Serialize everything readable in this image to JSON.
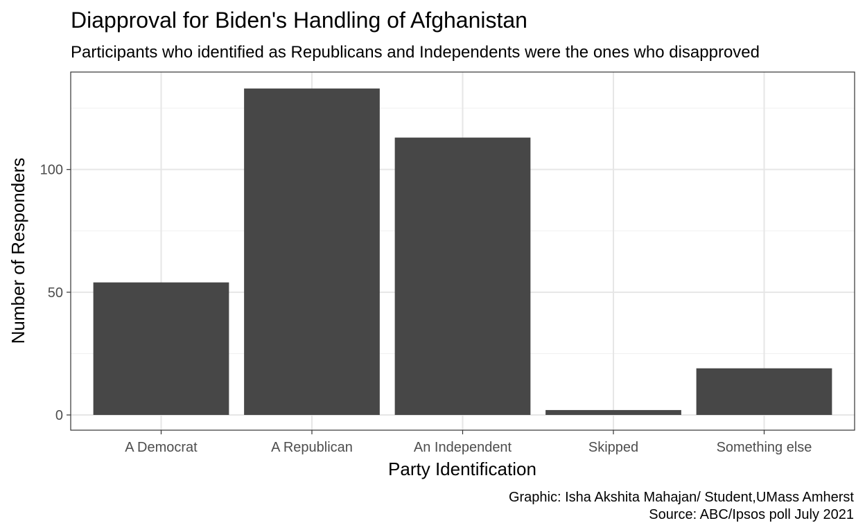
{
  "chart_data": {
    "type": "bar",
    "title": "Diapproval for Biden's Handling of Afghanistan",
    "subtitle": "Participants who identified as Republicans and Independents were the ones who disapproved",
    "xlabel": "Party Identification",
    "ylabel": "Number of Responders",
    "categories": [
      "A Democrat",
      "A Republican",
      "An Independent",
      "Skipped",
      "Something else"
    ],
    "values": [
      54,
      133,
      113,
      2,
      19
    ],
    "ylim": [
      -6.2,
      139.7
    ],
    "yticks": [
      0,
      50,
      100
    ],
    "ytick_labels": [
      "0",
      "50",
      "100"
    ],
    "grid": true,
    "bar_color": "#474747",
    "caption_lines": [
      "Graphic: Isha Akshita Mahajan/ Student,UMass Amherst",
      "Source: ABC/Ipsos poll July 2021"
    ]
  }
}
